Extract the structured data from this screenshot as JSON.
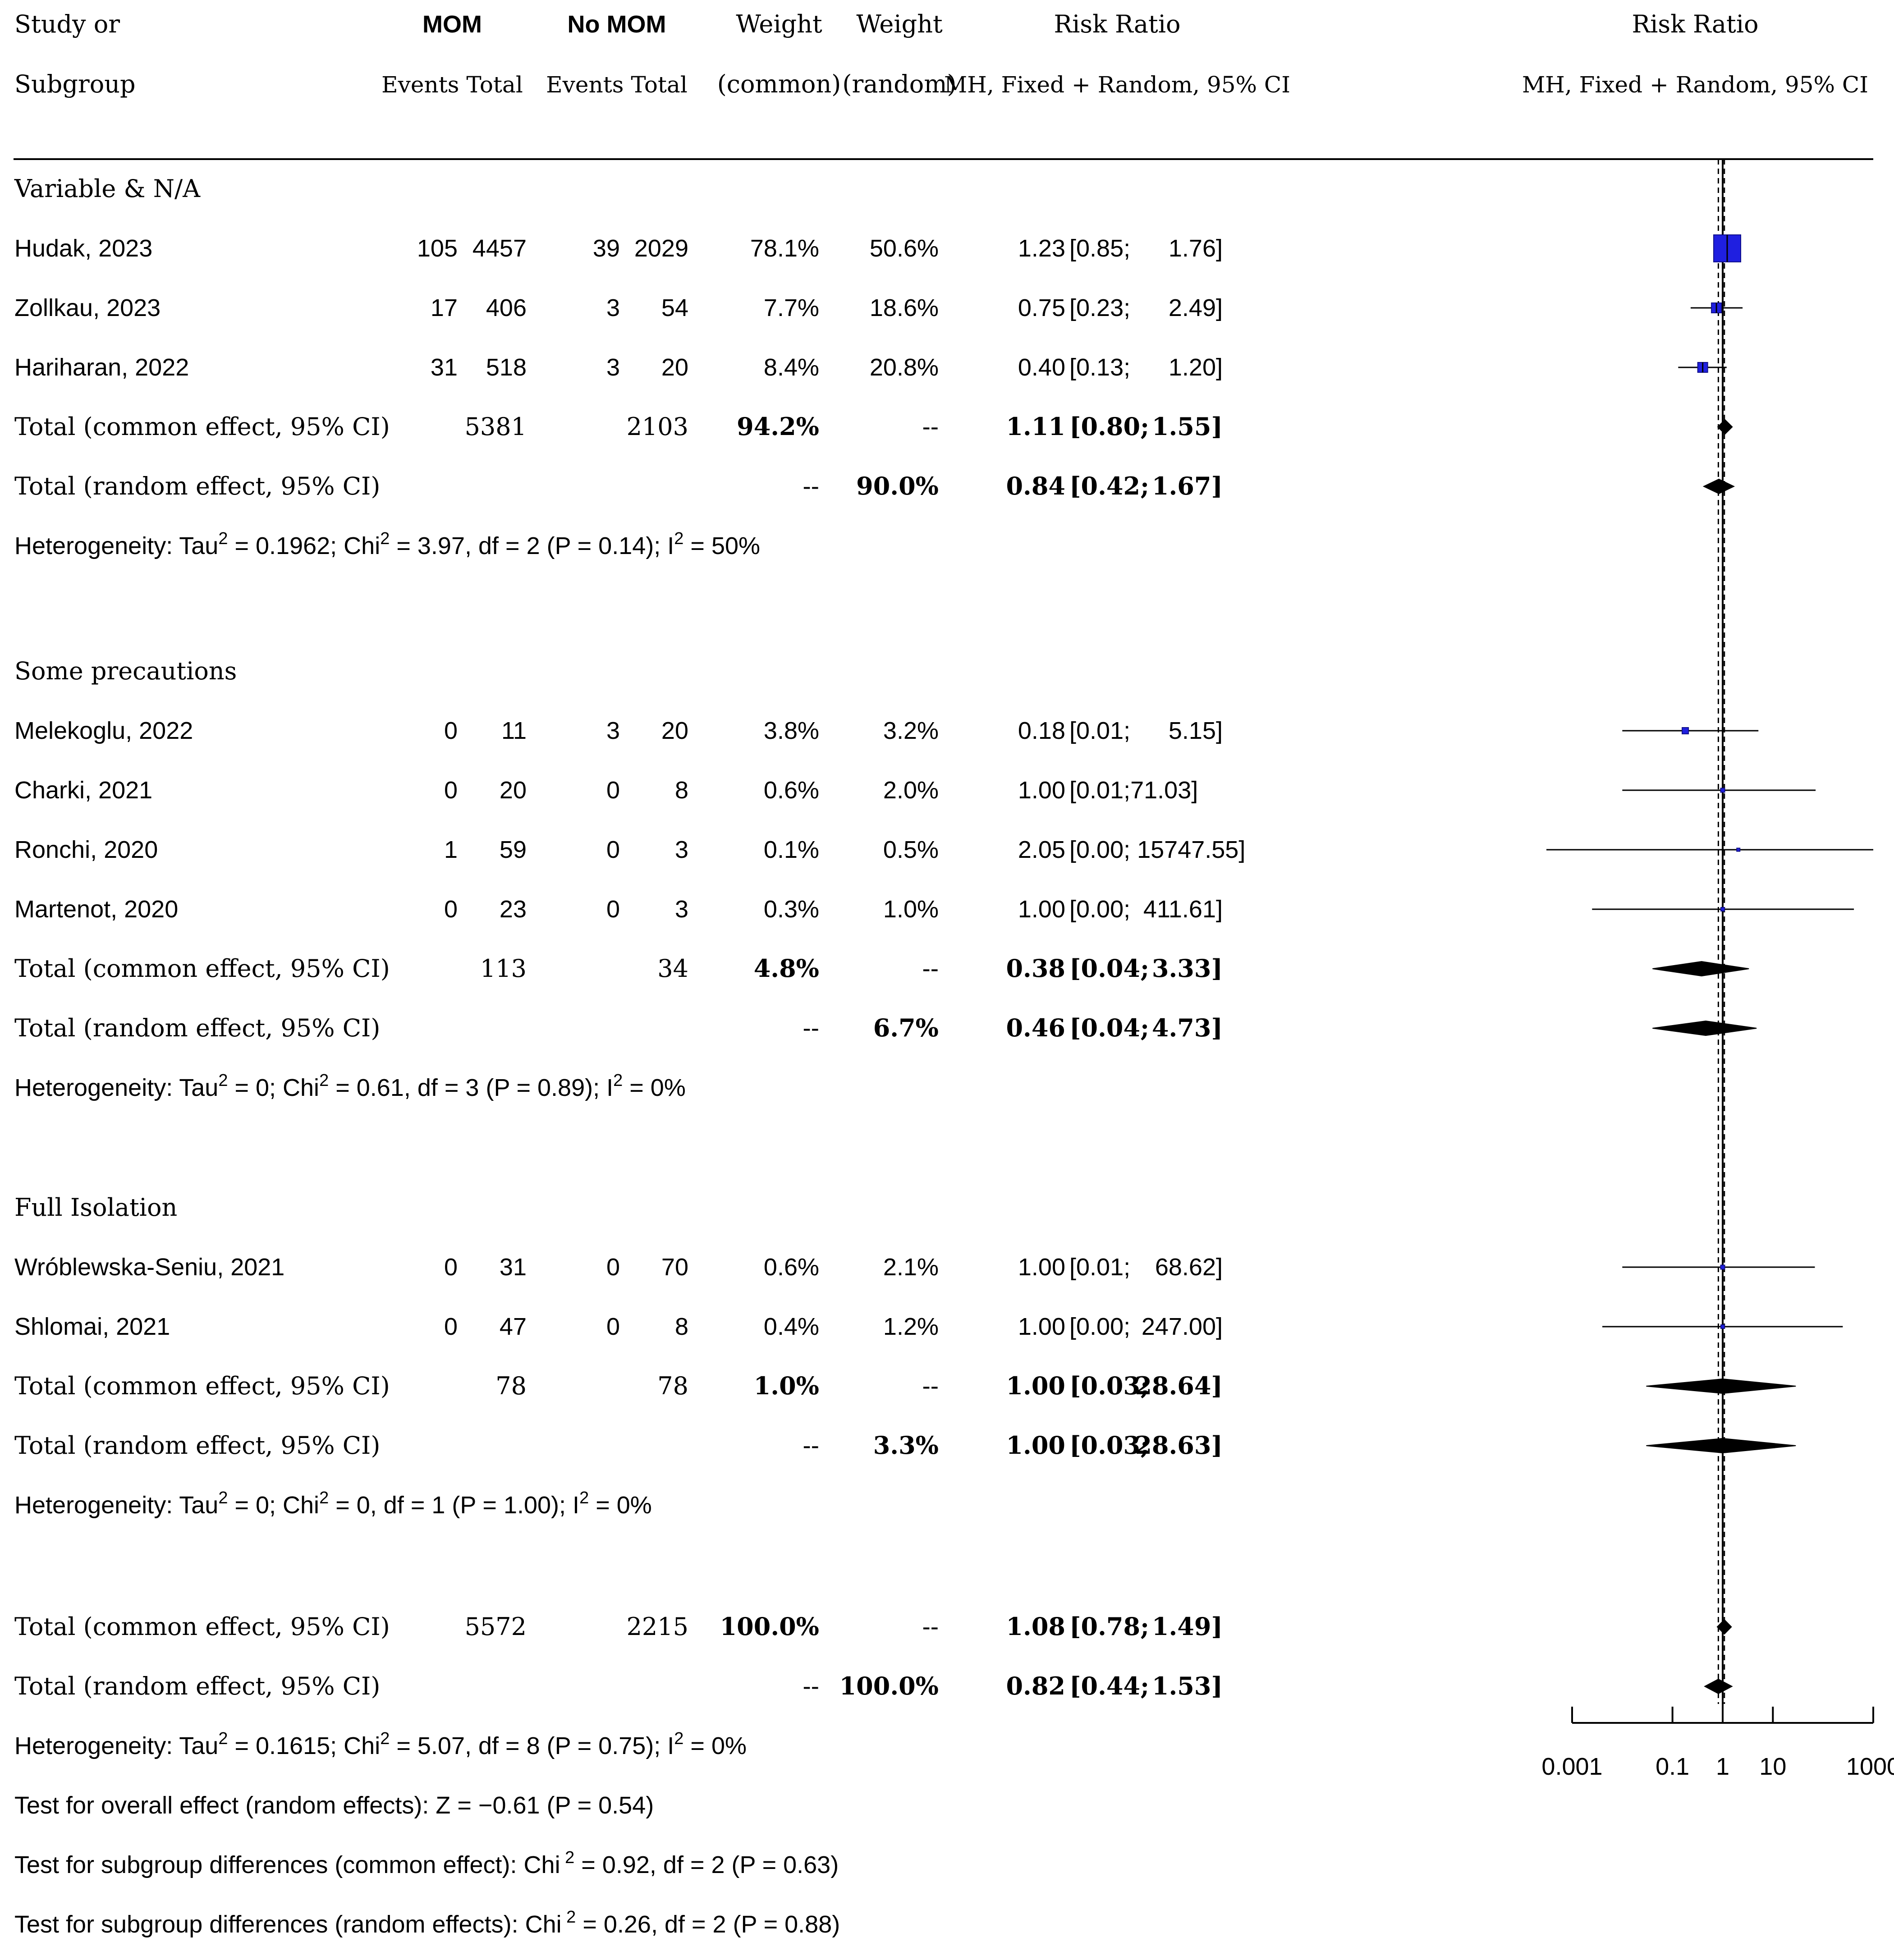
{
  "chart_data": {
    "type": "forest",
    "title": "",
    "header": {
      "col_study_1": "Study or",
      "col_study_2": "Subgroup",
      "group_exp": "MOM",
      "group_ctrl": "No MOM",
      "events_total_exp": "Events Total",
      "events_total_ctrl": "Events Total",
      "weight_common_1": "Weight",
      "weight_common_2": "(common)",
      "weight_random_1": "Weight",
      "weight_random_2": "(random)",
      "rr_table_1": "Risk Ratio",
      "rr_table_2": "MH, Fixed + Random, 95% CI",
      "rr_plot_1": "Risk Ratio",
      "rr_plot_2": "MH, Fixed + Random, 95% CI"
    },
    "xaxis": {
      "scale": "log",
      "min": 0.001,
      "max": 1000,
      "ticks": [
        0.001,
        0.1,
        1,
        10,
        1000
      ],
      "tick_labels": [
        "0.001",
        "0.1",
        "1",
        "10",
        "1000"
      ]
    },
    "subgroups": [
      {
        "label": "Variable & N/A",
        "studies": [
          {
            "name": "Hudak, 2023",
            "e1": "105",
            "n1": "4457",
            "e2": "39",
            "n2": "2029",
            "wc": "78.1%",
            "wr": "50.6%",
            "rr_text": "1.23",
            "ci_low_text": "[0.85;",
            "ci_high_text": "1.76]",
            "rr": 1.23,
            "lo": 0.85,
            "hi": 1.76
          },
          {
            "name": "Zollkau, 2023",
            "e1": "17",
            "n1": "406",
            "e2": "3",
            "n2": "54",
            "wc": "7.7%",
            "wr": "18.6%",
            "rr_text": "0.75",
            "ci_low_text": "[0.23;",
            "ci_high_text": "2.49]",
            "rr": 0.75,
            "lo": 0.23,
            "hi": 2.49
          },
          {
            "name": "Hariharan, 2022",
            "e1": "31",
            "n1": "518",
            "e2": "3",
            "n2": "20",
            "wc": "8.4%",
            "wr": "20.8%",
            "rr_text": "0.40",
            "ci_low_text": "[0.13;",
            "ci_high_text": "1.20]",
            "rr": 0.4,
            "lo": 0.13,
            "hi": 1.2
          }
        ],
        "common": {
          "label": "Total (common effect, 95% CI)",
          "n1": "5381",
          "n2": "2103",
          "wc": "94.2%",
          "wr": "--",
          "rr_text": "1.11",
          "ci_low_text": "[0.80;",
          "ci_high_text": "1.55]",
          "rr": 1.11,
          "lo": 0.8,
          "hi": 1.55
        },
        "random": {
          "label": "Total (random effect, 95% CI)",
          "wc": "--",
          "wr": "90.0%",
          "rr_text": "0.84",
          "ci_low_text": "[0.42;",
          "ci_high_text": "1.67]",
          "rr": 0.84,
          "lo": 0.42,
          "hi": 1.67
        },
        "heterogeneity": {
          "pre": "Heterogeneity: Tau",
          "tau2": "0.1962",
          "chi2": "3.97",
          "df": "2",
          "p": "0.14",
          "i2": "50%"
        }
      },
      {
        "label": "Some precautions",
        "studies": [
          {
            "name": "Melekoglu, 2022",
            "e1": "0",
            "n1": "11",
            "e2": "3",
            "n2": "20",
            "wc": "3.8%",
            "wr": "3.2%",
            "rr_text": "0.18",
            "ci_low_text": "[0.01;",
            "ci_high_text": "5.15]",
            "rr": 0.18,
            "lo": 0.01,
            "hi": 5.15
          },
          {
            "name": "Charki, 2021",
            "e1": "0",
            "n1": "20",
            "e2": "0",
            "n2": "8",
            "wc": "0.6%",
            "wr": "2.0%",
            "rr_text": "1.00",
            "ci_low_text": "[0.01;71.03]",
            "ci_high_text": "",
            "rr": 1.0,
            "lo": 0.01,
            "hi": 71.03
          },
          {
            "name": "Ronchi, 2020",
            "e1": "1",
            "n1": "59",
            "e2": "0",
            "n2": "3",
            "wc": "0.1%",
            "wr": "0.5%",
            "rr_text": "2.05",
            "ci_low_text": "[0.00; 15747.55]",
            "ci_high_text": "",
            "rr": 2.05,
            "lo": 0.0001,
            "hi": 15747.55
          },
          {
            "name": "Martenot, 2020",
            "e1": "0",
            "n1": "23",
            "e2": "0",
            "n2": "3",
            "wc": "0.3%",
            "wr": "1.0%",
            "rr_text": "1.00",
            "ci_low_text": "[0.00;",
            "ci_high_text": "411.61]",
            "rr": 1.0,
            "lo": 0.0025,
            "hi": 411.61
          }
        ],
        "common": {
          "label": "Total (common effect, 95% CI)",
          "n1": "113",
          "n2": "34",
          "wc": "4.8%",
          "wr": "--",
          "rr_text": "0.38",
          "ci_low_text": "[0.04;",
          "ci_high_text": "3.33]",
          "rr": 0.38,
          "lo": 0.04,
          "hi": 3.33
        },
        "random": {
          "label": "Total (random effect, 95% CI)",
          "wc": "--",
          "wr": "6.7%",
          "rr_text": "0.46",
          "ci_low_text": "[0.04;",
          "ci_high_text": "4.73]",
          "rr": 0.46,
          "lo": 0.04,
          "hi": 4.73
        },
        "heterogeneity": {
          "pre": "Heterogeneity: Tau",
          "tau2": "0",
          "chi2": "0.61",
          "df": "3",
          "p": "0.89",
          "i2": "0%"
        }
      },
      {
        "label": "Full Isolation",
        "studies": [
          {
            "name": "Wróblewska-Seniu, 2021",
            "e1": "0",
            "n1": "31",
            "e2": "0",
            "n2": "70",
            "wc": "0.6%",
            "wr": "2.1%",
            "rr_text": "1.00",
            "ci_low_text": "[0.01;",
            "ci_high_text": "68.62]",
            "rr": 1.0,
            "lo": 0.01,
            "hi": 68.62
          },
          {
            "name": "Shlomai, 2021",
            "e1": "0",
            "n1": "47",
            "e2": "0",
            "n2": "8",
            "wc": "0.4%",
            "wr": "1.2%",
            "rr_text": "1.00",
            "ci_low_text": "[0.00;",
            "ci_high_text": "247.00]",
            "rr": 1.0,
            "lo": 0.004,
            "hi": 247.0
          }
        ],
        "common": {
          "label": "Total (common effect, 95% CI)",
          "n1": "78",
          "n2": "78",
          "wc": "1.0%",
          "wr": "--",
          "rr_text": "1.00",
          "ci_low_text": "[0.03;",
          "ci_high_text": "28.64]",
          "rr": 1.0,
          "lo": 0.03,
          "hi": 28.64
        },
        "random": {
          "label": "Total (random effect, 95% CI)",
          "wc": "--",
          "wr": "3.3%",
          "rr_text": "1.00",
          "ci_low_text": "[0.03;",
          "ci_high_text": "28.63]",
          "rr": 1.0,
          "lo": 0.03,
          "hi": 28.63
        },
        "heterogeneity": {
          "pre": "Heterogeneity: Tau",
          "tau2": "0",
          "chi2": "0",
          "df": "1",
          "p": "1.00",
          "i2": "0%"
        }
      }
    ],
    "overall": {
      "common": {
        "label": "Total (common effect, 95% CI)",
        "n1": "5572",
        "n2": "2215",
        "wc": "100.0%",
        "wr": "--",
        "rr_text": "1.08",
        "ci_low_text": "[0.78;",
        "ci_high_text": "1.49]",
        "rr": 1.08,
        "lo": 0.78,
        "hi": 1.49
      },
      "random": {
        "label": "Total (random effect, 95% CI)",
        "wc": "--",
        "wr": "100.0%",
        "rr_text": "0.82",
        "ci_low_text": "[0.44;",
        "ci_high_text": "1.53]",
        "rr": 0.82,
        "lo": 0.44,
        "hi": 1.53
      },
      "heterogeneity": {
        "pre": "Heterogeneity: Tau",
        "tau2": "0.1615",
        "chi2": "5.07",
        "df": "8",
        "p": "0.75",
        "i2": "0%"
      },
      "test_overall": "Test for overall effect (random effects): Z = −0.61 (P = 0.54)",
      "test_subgroup_common": {
        "pre": "Test for subgroup differences (common effect): Chi",
        "post": " = 0.92, df = 2 (P = 0.63)"
      },
      "test_subgroup_random": {
        "pre": "Test for subgroup differences (random effects): Chi",
        "post": " = 0.26, df = 2 (P = 0.88)"
      }
    },
    "colors": {
      "square_fill": "#1f1fe0",
      "square_stroke": "#10108a",
      "diamond": "#000000",
      "line": "#000000"
    }
  }
}
